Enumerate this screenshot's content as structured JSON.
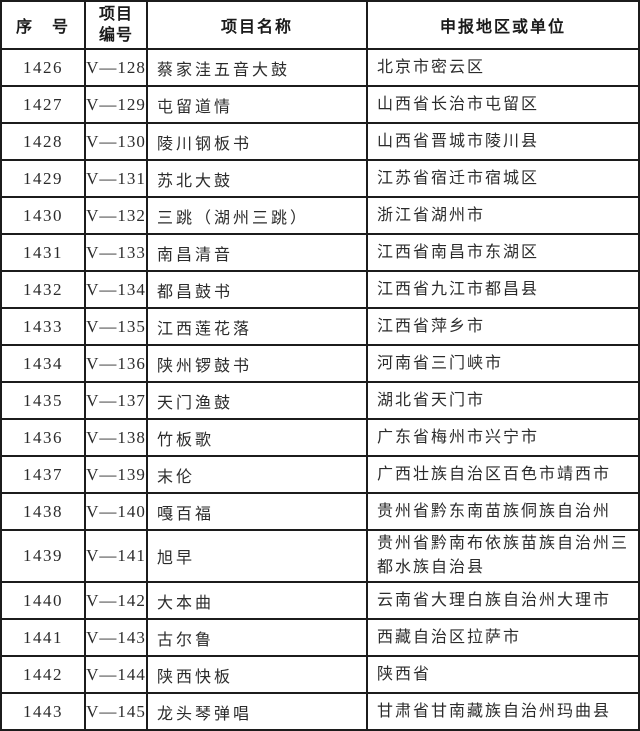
{
  "document": {
    "kind": "heritage-project-list-table"
  },
  "table": {
    "headers": {
      "index": "序　号",
      "code": "项目\n编号",
      "name": "项目名称",
      "region": "申报地区或单位"
    },
    "rows": [
      {
        "index": "1426",
        "code": "V—128",
        "name": "蔡家洼五音大鼓",
        "region": "北京市密云区"
      },
      {
        "index": "1427",
        "code": "V—129",
        "name": "屯留道情",
        "region": "山西省长治市屯留区"
      },
      {
        "index": "1428",
        "code": "V—130",
        "name": "陵川钢板书",
        "region": "山西省晋城市陵川县"
      },
      {
        "index": "1429",
        "code": "V—131",
        "name": "苏北大鼓",
        "region": "江苏省宿迁市宿城区"
      },
      {
        "index": "1430",
        "code": "V—132",
        "name": "三跳（湖州三跳）",
        "region": "浙江省湖州市"
      },
      {
        "index": "1431",
        "code": "V—133",
        "name": "南昌清音",
        "region": "江西省南昌市东湖区"
      },
      {
        "index": "1432",
        "code": "V—134",
        "name": "都昌鼓书",
        "region": "江西省九江市都昌县"
      },
      {
        "index": "1433",
        "code": "V—135",
        "name": "江西莲花落",
        "region": "江西省萍乡市"
      },
      {
        "index": "1434",
        "code": "V—136",
        "name": "陕州锣鼓书",
        "region": "河南省三门峡市"
      },
      {
        "index": "1435",
        "code": "V—137",
        "name": "天门渔鼓",
        "region": "湖北省天门市"
      },
      {
        "index": "1436",
        "code": "V—138",
        "name": "竹板歌",
        "region": "广东省梅州市兴宁市"
      },
      {
        "index": "1437",
        "code": "V—139",
        "name": "末伦",
        "region": "广西壮族自治区百色市靖西市"
      },
      {
        "index": "1438",
        "code": "V—140",
        "name": "嘎百福",
        "region": "贵州省黔东南苗族侗族自治州"
      },
      {
        "index": "1439",
        "code": "V—141",
        "name": "旭早",
        "region": "贵州省黔南布依族苗族自治州三都水族自治县"
      },
      {
        "index": "1440",
        "code": "V—142",
        "name": "大本曲",
        "region": "云南省大理白族自治州大理市"
      },
      {
        "index": "1441",
        "code": "V—143",
        "name": "古尔鲁",
        "region": "西藏自治区拉萨市"
      },
      {
        "index": "1442",
        "code": "V—144",
        "name": "陕西快板",
        "region": "陕西省"
      },
      {
        "index": "1443",
        "code": "V—145",
        "name": "龙头琴弹唱",
        "region": "甘肃省甘南藏族自治州玛曲县"
      }
    ]
  },
  "colors": {
    "background": "#ffffff",
    "border": "#1c1c1c",
    "text": "#2b2b2b",
    "header_text": "#1a1a1a"
  }
}
